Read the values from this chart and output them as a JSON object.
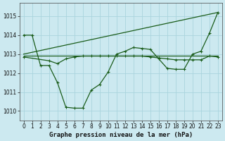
{
  "xlabel": "Graphe pression niveau de la mer (hPa)",
  "xlim": [
    -0.5,
    23.5
  ],
  "ylim": [
    1009.5,
    1015.7
  ],
  "yticks": [
    1010,
    1011,
    1012,
    1013,
    1014,
    1015
  ],
  "xticks": [
    0,
    1,
    2,
    3,
    4,
    5,
    6,
    7,
    8,
    9,
    10,
    11,
    12,
    13,
    14,
    15,
    16,
    17,
    18,
    19,
    20,
    21,
    22,
    23
  ],
  "background_color": "#cce9f0",
  "grid_color": "#aad4dd",
  "line_color": "#1a5c1a",
  "line1_x": [
    0,
    1,
    2,
    3,
    4,
    5,
    6,
    7,
    8,
    9,
    10,
    11,
    12,
    13,
    14,
    15,
    16,
    17,
    18,
    19,
    20,
    21,
    22,
    23
  ],
  "line1_y": [
    1014.0,
    1014.0,
    1012.4,
    1012.4,
    1011.5,
    1010.2,
    1010.15,
    1010.15,
    1011.1,
    1011.4,
    1012.05,
    1013.0,
    1013.15,
    1013.35,
    1013.3,
    1013.25,
    1012.75,
    1012.25,
    1012.2,
    1012.2,
    1013.0,
    1013.15,
    1014.1,
    1015.2
  ],
  "line2_x": [
    0,
    23
  ],
  "line2_y": [
    1012.9,
    1012.9
  ],
  "line3_x": [
    0,
    23
  ],
  "line3_y": [
    1013.0,
    1015.2
  ],
  "line4_x": [
    0,
    3,
    4,
    5,
    6,
    7,
    8,
    9,
    10,
    11,
    12,
    13,
    14,
    15,
    16,
    17,
    18,
    19,
    20,
    21,
    22,
    23
  ],
  "line4_y": [
    1012.85,
    1012.65,
    1012.5,
    1012.75,
    1012.85,
    1012.9,
    1012.9,
    1012.9,
    1012.9,
    1012.9,
    1012.9,
    1012.9,
    1012.9,
    1012.85,
    1012.8,
    1012.75,
    1012.7,
    1012.7,
    1012.7,
    1012.7,
    1012.9,
    1012.85
  ],
  "marker_size": 3.5,
  "linewidth": 0.9,
  "tick_fontsize": 5.5,
  "label_fontsize": 6.5
}
